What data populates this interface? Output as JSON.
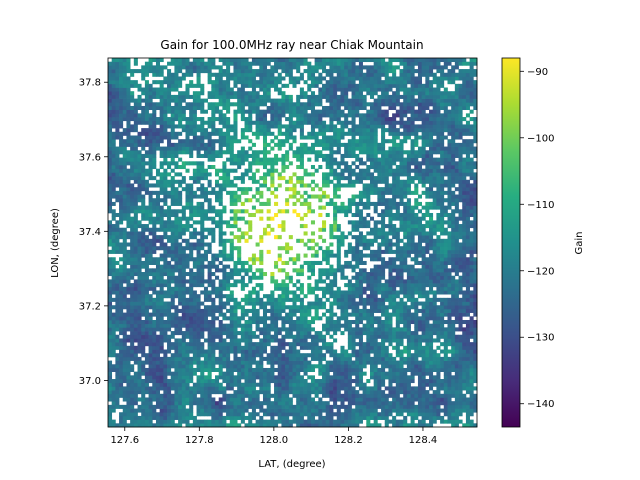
{
  "chart_data": {
    "type": "heatmap",
    "title": "Gain for 100.0MHz ray near Chiak Mountain",
    "xlabel": "LAT, (degree)",
    "ylabel": "LON, (degree)",
    "xlim": [
      127.555,
      128.545
    ],
    "ylim": [
      36.875,
      37.865
    ],
    "x_ticks": [
      "127.6",
      "127.8",
      "128.0",
      "128.2",
      "128.4"
    ],
    "x_tick_values": [
      127.6,
      127.8,
      128.0,
      128.2,
      128.4
    ],
    "y_ticks": [
      "37.0",
      "37.2",
      "37.4",
      "37.6",
      "37.8"
    ],
    "y_tick_values": [
      37.0,
      37.2,
      37.4,
      37.6,
      37.8
    ],
    "colorbar": {
      "label": "Gain",
      "colormap": "viridis",
      "range": [
        -143.5,
        -88.0
      ],
      "ticks": [
        "−90",
        "−100",
        "−110",
        "−120",
        "−130",
        "−140"
      ],
      "tick_values": [
        -90,
        -100,
        -110,
        -120,
        -130,
        -140
      ]
    },
    "grid": false,
    "grid_resolution": [
      100,
      100
    ],
    "field_description": {
      "peak_gain": -90,
      "peak_location": [
        128.03,
        37.42
      ],
      "background_gain": -120,
      "missing_values": "white (no data)"
    }
  }
}
